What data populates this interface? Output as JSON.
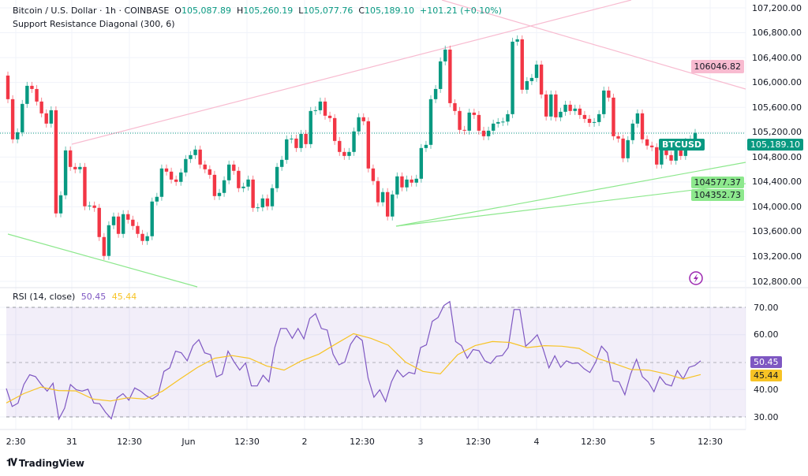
{
  "header": {
    "symbol_line": "Bitcoin / U.S. Dollar · 1h · COINBASE",
    "open_label": "O",
    "open": "105,087.89",
    "high_label": "H",
    "high": "105,260.19",
    "low_label": "L",
    "low": "105,077.76",
    "close_label": "C",
    "close": "105,189.10",
    "change": "+101.21 (+0.10%)",
    "indicator": "Support Resistance Diagonal (300, 6)"
  },
  "price_axis": [
    "107,200.00",
    "106,800.00",
    "106,400.00",
    "106,000.00",
    "105,600.00",
    "105,200.00",
    "104,800.00",
    "104,400.00",
    "104,000.00",
    "103,600.00",
    "103,200.00",
    "102,800.00"
  ],
  "badges": {
    "symbol": "BTCUSD",
    "last_price": "105,189.10",
    "resistance": "106046.82",
    "support_1": "104577.37",
    "support_2": "104352.73",
    "rsi": "50.45",
    "rsi_ma": "45.44"
  },
  "time_axis": [
    "2:30",
    "31",
    "12:30",
    "Jun",
    "12:30",
    "2",
    "12:30",
    "3",
    "12:30",
    "4",
    "12:30",
    "5",
    "12:30"
  ],
  "rsi": {
    "title": "RSI (14, close)",
    "value": "50.45",
    "ma_value": "45.44",
    "axis": [
      "70.00",
      "60.00",
      "40.00",
      "30.00"
    ]
  },
  "colors": {
    "up": "#089981",
    "down": "#f23645",
    "rsi": "#7e57c2",
    "rsi_ma": "#f7c325",
    "resistance": "#f8bbd0",
    "support": "#8de88d"
  },
  "branding": "TradingView",
  "chart_data": [
    {
      "type": "candlestick",
      "interval": "1h",
      "ylim": [
        102800,
        107200
      ],
      "first_open": 106111,
      "closes": [
        105731,
        105085,
        105198,
        105655,
        105946,
        105895,
        105693,
        105503,
        105338,
        105553,
        103893,
        104185,
        104907,
        104641,
        104603,
        104641,
        104008,
        104020,
        103982,
        103513,
        103209,
        103703,
        103843,
        103564,
        103881,
        103792,
        103691,
        103564,
        103450,
        103526,
        104084,
        104160,
        104616,
        104565,
        104438,
        104401,
        104552,
        104768,
        104831,
        104920,
        104679,
        104603,
        104514,
        104172,
        104223,
        104426,
        104679,
        104578,
        104299,
        104324,
        104438,
        103982,
        103990,
        104134,
        104008,
        104299,
        104641,
        104755,
        105085,
        105097,
        104945,
        105173,
        105008,
        105541,
        105553,
        105693,
        105465,
        105427,
        105059,
        104882,
        104818,
        104882,
        105212,
        105440,
        105376,
        104616,
        104414,
        104072,
        104236,
        103843,
        104198,
        104489,
        104312,
        104438,
        104388,
        104451,
        104945,
        104996,
        105731,
        105895,
        106339,
        106529,
        105667,
        105541,
        105237,
        105224,
        105515,
        105477,
        105224,
        105135,
        105224,
        105338,
        105363,
        105370,
        105490,
        106656,
        106694,
        105883,
        106022,
        106073,
        106288,
        105807,
        105452,
        105807,
        105439,
        105528,
        105642,
        105541,
        105579,
        105477,
        105414,
        105350,
        105363,
        105490,
        105870,
        105756,
        105135,
        105097,
        104780,
        105072,
        105338,
        105503,
        105085,
        104984,
        104958,
        104679,
        104984,
        104831,
        104742,
        105021,
        104818,
        105046,
        105087.89,
        105189.1
      ],
      "trendlines": [
        {
          "kind": "resistance",
          "label": "106046.82"
        },
        {
          "kind": "support",
          "label": "104577.37"
        },
        {
          "kind": "support",
          "label": "104352.73"
        }
      ]
    },
    {
      "type": "line",
      "title": "RSI (14, close)",
      "ylim": [
        25,
        75
      ],
      "levels": [
        70,
        50,
        30
      ],
      "series": [
        {
          "name": "RSI",
          "values": [
            40.4,
            33.8,
            35,
            41.8,
            45.4,
            44.7,
            41.8,
            39.4,
            42.3,
            29.2,
            33.2,
            41.8,
            39.9,
            39.4,
            40.1,
            35.1,
            34.8,
            31.7,
            29.3,
            37,
            38.5,
            36.1,
            40.6,
            39.4,
            37.7,
            36.5,
            38,
            46.6,
            47.9,
            54,
            53.4,
            50.5,
            56,
            58.2,
            53.4,
            52.7,
            44.6,
            45.6,
            54,
            50.2,
            47.1,
            49.7,
            41.3,
            41.3,
            45.2,
            42.8,
            55.3,
            62.3,
            62.3,
            58.7,
            62.3,
            58.5,
            65.9,
            67.7,
            62.3,
            61.7,
            52.9,
            49,
            50,
            56.5,
            59.6,
            57.9,
            44.2,
            37.2,
            39.9,
            35.6,
            42.8,
            47.1,
            44.6,
            46.3,
            45.7,
            55.3,
            56.3,
            64.9,
            66.3,
            70.7,
            72.1,
            57.5,
            56,
            51.4,
            54.6,
            54.2,
            50.5,
            49.5,
            52.1,
            52.4,
            55.3,
            69.2,
            69.2,
            55.8,
            57.7,
            60,
            54.8,
            47.9,
            52.3,
            48.1,
            50.5,
            49.5,
            49.7,
            47.6,
            46.2,
            50,
            55.8,
            53.4,
            43.1,
            42.8,
            38.1,
            45.7,
            51,
            44.7,
            42.8,
            39.2,
            44.7,
            42,
            41.3,
            46.9,
            43.8,
            48.1,
            48.8,
            50.45
          ]
        },
        {
          "name": "RSI-based MA",
          "values": [
            35.1,
            38.5,
            40.9,
            39.6,
            39.5,
            36.5,
            35.8,
            37,
            36.5,
            39.4,
            43.8,
            48,
            51.4,
            52.4,
            51.4,
            48.6,
            47.1,
            50.5,
            52.9,
            56.7,
            60.4,
            58.7,
            56.2,
            50,
            46.6,
            45.7,
            52.7,
            56,
            57.5,
            57.2,
            55.3,
            56,
            55.8,
            55,
            51.4,
            49.5,
            47.3,
            47.1,
            45.7,
            43.8,
            45.44
          ]
        }
      ]
    }
  ]
}
